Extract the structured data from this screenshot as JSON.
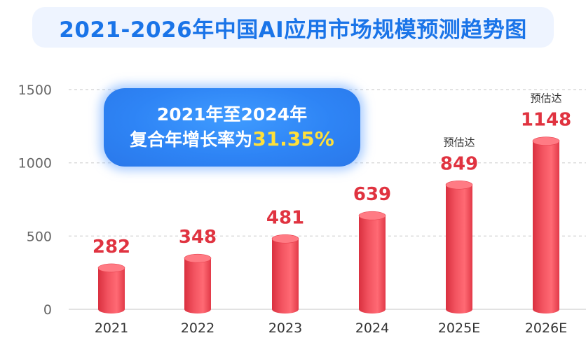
{
  "title": "2021-2026年中国AI应用市场规模预测趋势图",
  "callout": {
    "line1": "2021年至2024年",
    "line2_prefix": "复合年增长率为",
    "rate": "31.35%"
  },
  "chart_data": {
    "type": "bar",
    "categories": [
      "2021",
      "2022",
      "2023",
      "2024",
      "2025E",
      "2026E"
    ],
    "values": [
      282,
      348,
      481,
      639,
      849,
      1148
    ],
    "value_labels": [
      "282",
      "348",
      "481",
      "639",
      "849",
      "1148"
    ],
    "annotations": [
      "",
      "",
      "",
      "",
      "预估达",
      "预估达"
    ],
    "ylim": [
      0,
      1500
    ],
    "yticks": [
      0,
      500,
      1000,
      1500
    ],
    "grid": true,
    "bar_color": "#e9414f",
    "value_label_color": "#e03340",
    "axis_text_color": "#666666"
  }
}
